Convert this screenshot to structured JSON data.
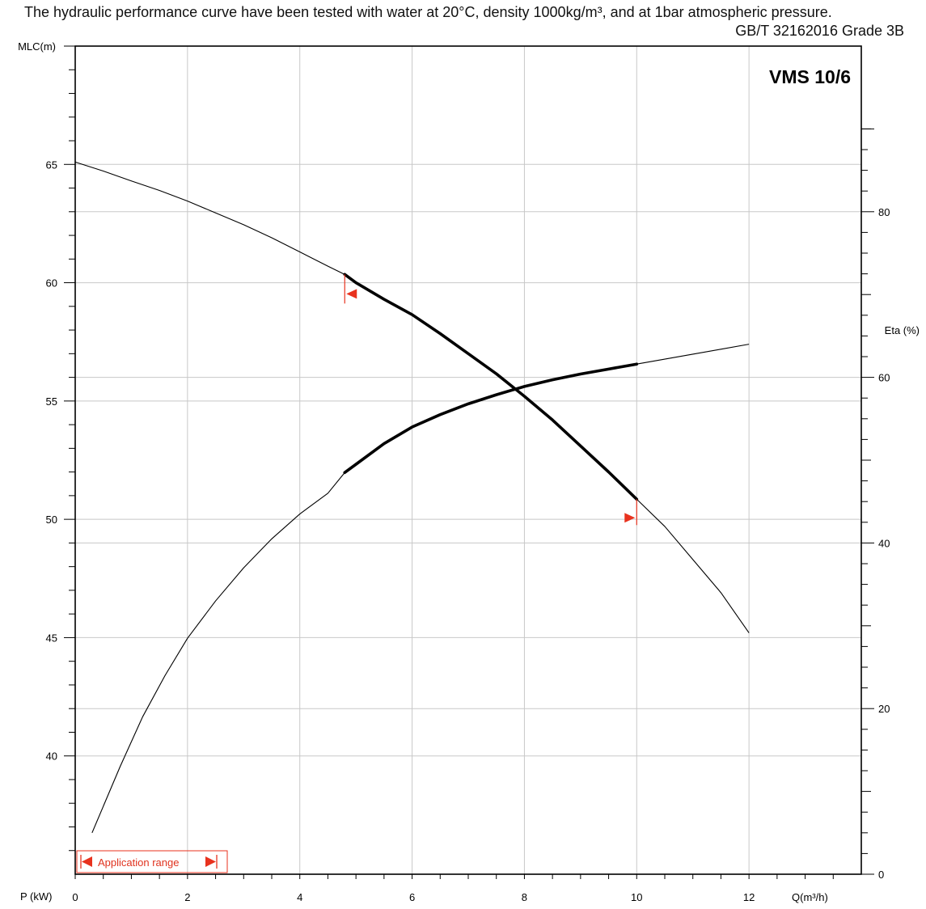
{
  "header": {
    "note": "The hydraulic performance curve have been tested with water at 20°C, density 1000kg/m³, and at 1bar atmospheric pressure.",
    "standard": "GB/T 32162016 Grade 3B"
  },
  "chart_data": {
    "type": "line",
    "model": "VMS 10/6",
    "xlabel": "Q(m³/h)",
    "ylabel_left": "MLC(m)",
    "ylabel_right": "Eta (%)",
    "power_label": "P (kW)",
    "legend": "Application range",
    "xlim": [
      0,
      14
    ],
    "x_ticks": [
      "0",
      "2",
      "4",
      "6",
      "8",
      "10",
      "12"
    ],
    "ylim_head": [
      35,
      70
    ],
    "head_ticks": [
      "40",
      "45",
      "50",
      "55",
      "60",
      "65"
    ],
    "ylim_eta": [
      0,
      100
    ],
    "eta_ticks": [
      "0",
      "20",
      "40",
      "60",
      "80"
    ],
    "grid": true,
    "application_range": [
      4.8,
      10.0
    ],
    "colors": {
      "curve": "#000000",
      "grid": "#c8c8c8",
      "marker": "#e8321e"
    },
    "series": [
      {
        "axis": "head",
        "x": [
          0,
          0.5,
          1,
          1.5,
          2,
          2.5,
          3,
          3.5,
          4,
          4.5,
          4.8,
          5,
          5.5,
          6,
          6.5,
          7,
          7.5,
          8,
          8.5,
          9,
          9.5,
          10,
          10.5,
          11,
          11.5,
          12
        ],
        "y": [
          65.1,
          64.72,
          64.3,
          63.9,
          63.45,
          62.95,
          62.45,
          61.9,
          61.3,
          60.7,
          60.35,
          60.0,
          59.3,
          58.65,
          57.85,
          57.0,
          56.15,
          55.2,
          54.2,
          53.1,
          52.0,
          50.85,
          49.7,
          48.3,
          46.9,
          45.2
        ]
      },
      {
        "axis": "eta",
        "x": [
          0.3,
          0.8,
          1.2,
          1.6,
          2,
          2.5,
          3,
          3.5,
          4,
          4.5,
          4.8,
          5,
          5.5,
          6,
          6.5,
          7,
          7.5,
          8,
          8.5,
          9,
          9.5,
          10,
          10.5,
          11,
          11.5,
          12
        ],
        "y": [
          5,
          13,
          19,
          24,
          28.5,
          33,
          37,
          40.5,
          43.5,
          46,
          48.5,
          49.5,
          52,
          54,
          55.5,
          56.8,
          57.9,
          58.9,
          59.7,
          60.4,
          61,
          61.6,
          62.2,
          62.8,
          63.4,
          64
        ]
      }
    ]
  }
}
